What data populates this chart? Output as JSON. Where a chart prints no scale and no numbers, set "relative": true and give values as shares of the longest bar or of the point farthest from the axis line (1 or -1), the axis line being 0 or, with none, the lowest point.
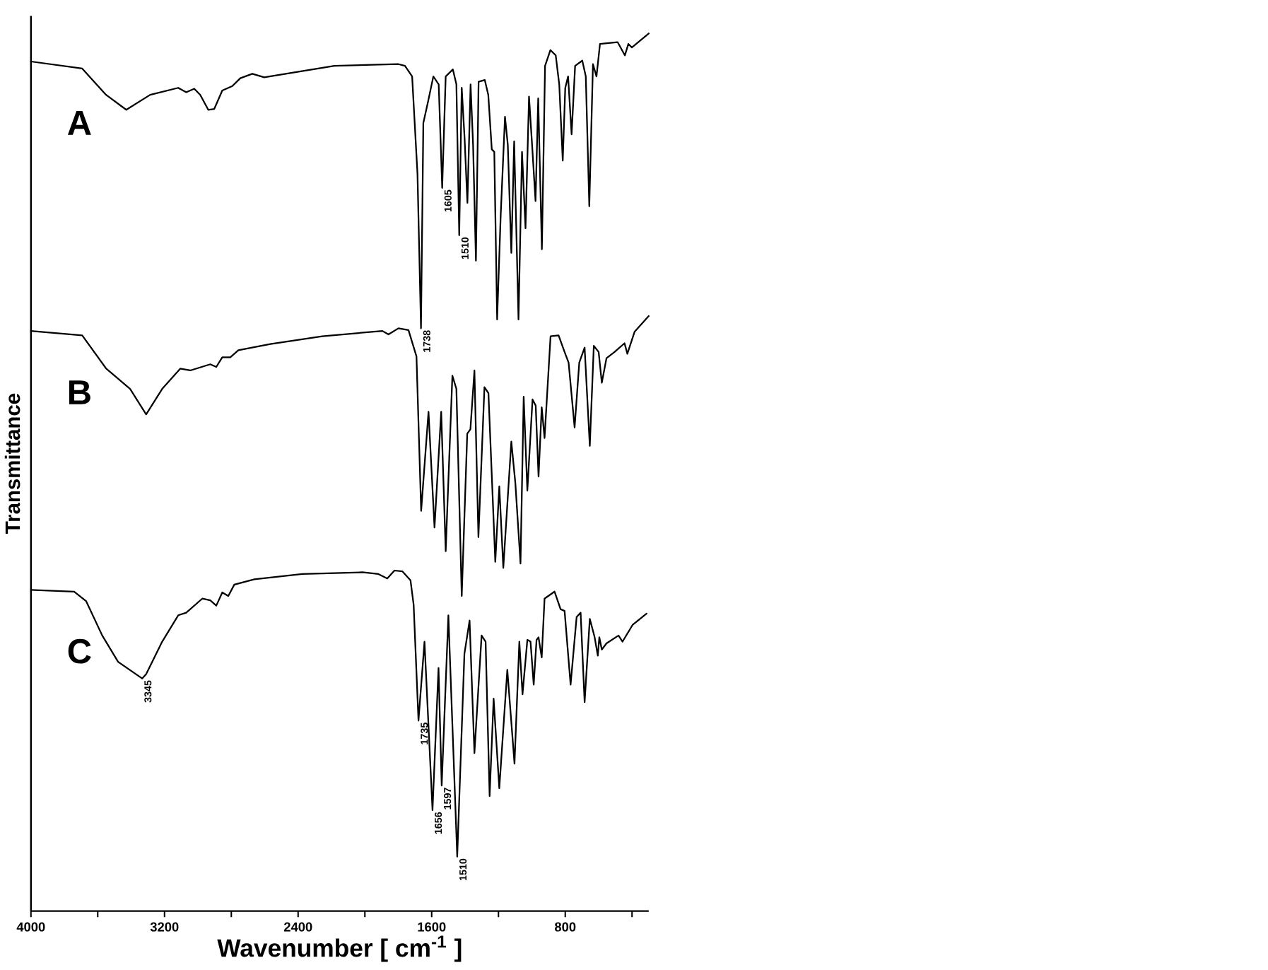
{
  "chart_data": {
    "type": "line",
    "xlabel": "Wavenumber [ cm$^{-1}$ ]",
    "ylabel": "Transmittance",
    "relative": true,
    "xlim": [
      4000,
      300
    ],
    "xticks": [
      4000,
      {
        "value": 3600,
        "label": null
      },
      3200,
      {
        "value": 2800,
        "label": null
      },
      2400,
      {
        "value": 2000,
        "label": null
      },
      1600,
      {
        "value": 1200,
        "label": null
      },
      800,
      {
        "value": 400,
        "label": null
      }
    ],
    "marker": "none",
    "line_style": "solid",
    "series": [
      {
        "name": "A",
        "color": "#000000",
        "x": [
          4000,
          3693,
          3550,
          3429,
          3286,
          3118,
          3070,
          3022,
          2986,
          2938,
          2902,
          2854,
          2794,
          2746,
          2674,
          2603,
          2183,
          1799,
          1760,
          1717,
          1685,
          1664,
          1650,
          1622,
          1590,
          1558,
          1537,
          1516,
          1473,
          1452,
          1435,
          1420,
          1403,
          1386,
          1367,
          1352,
          1335,
          1319,
          1282,
          1261,
          1240,
          1225,
          1208,
          1187,
          1161,
          1144,
          1123,
          1106,
          1080,
          1059,
          1038,
          1017,
          996,
          978,
          962,
          940,
          921,
          889,
          857,
          836,
          815,
          800,
          783,
          762,
          741,
          698,
          677,
          656,
          634,
          613,
          592,
          486,
          443,
          422,
          401,
          300
        ],
        "values": [
          0.968,
          0.96,
          0.93,
          0.913,
          0.93,
          0.938,
          0.933,
          0.937,
          0.93,
          0.913,
          0.914,
          0.935,
          0.94,
          0.949,
          0.954,
          0.95,
          0.963,
          0.965,
          0.963,
          0.951,
          0.84,
          0.664,
          0.898,
          0.922,
          0.951,
          0.942,
          0.824,
          0.951,
          0.959,
          0.942,
          0.77,
          0.938,
          0.881,
          0.807,
          0.942,
          0.873,
          0.741,
          0.945,
          0.947,
          0.93,
          0.868,
          0.865,
          0.674,
          0.791,
          0.905,
          0.873,
          0.75,
          0.877,
          0.674,
          0.865,
          0.778,
          0.928,
          0.865,
          0.809,
          0.926,
          0.754,
          0.963,
          0.981,
          0.975,
          0.942,
          0.855,
          0.938,
          0.951,
          0.885,
          0.963,
          0.969,
          0.951,
          0.803,
          0.965,
          0.951,
          0.988,
          0.99,
          0.975,
          0.988,
          0.984,
          1.0
        ]
      },
      {
        "name": "B",
        "color": "#000000",
        "x": [
          4000,
          3693,
          3549,
          3406,
          3310,
          3214,
          3106,
          3046,
          2926,
          2890,
          2854,
          2806,
          2758,
          2566,
          2255,
          1895,
          1859,
          1799,
          1739,
          1691,
          1663,
          1619,
          1583,
          1543,
          1516,
          1476,
          1452,
          1420,
          1387,
          1368,
          1344,
          1320,
          1284,
          1260,
          1219,
          1195,
          1171,
          1123,
          1099,
          1068,
          1049,
          1027,
          996,
          977,
          960,
          941,
          924,
          888,
          840,
          804,
          780,
          744,
          716,
          684,
          653,
          629,
          600,
          581,
          553,
          505,
          445,
          428,
          385,
          300
        ],
        "values": [
          0.661,
          0.656,
          0.618,
          0.595,
          0.566,
          0.595,
          0.618,
          0.616,
          0.623,
          0.62,
          0.631,
          0.631,
          0.639,
          0.646,
          0.655,
          0.661,
          0.657,
          0.664,
          0.662,
          0.632,
          0.456,
          0.569,
          0.437,
          0.569,
          0.41,
          0.61,
          0.595,
          0.359,
          0.544,
          0.549,
          0.616,
          0.426,
          0.597,
          0.59,
          0.398,
          0.484,
          0.391,
          0.535,
          0.488,
          0.396,
          0.586,
          0.479,
          0.583,
          0.576,
          0.495,
          0.574,
          0.539,
          0.655,
          0.656,
          0.637,
          0.625,
          0.551,
          0.625,
          0.642,
          0.53,
          0.644,
          0.637,
          0.602,
          0.63,
          0.637,
          0.647,
          0.635,
          0.66,
          0.678
        ]
      },
      {
        "name": "C",
        "color": "#000000",
        "x": [
          4000,
          3741,
          3669,
          3573,
          3478,
          3334,
          3310,
          3214,
          3118,
          3070,
          2974,
          2926,
          2890,
          2854,
          2818,
          2782,
          2662,
          2375,
          2015,
          1919,
          1866,
          1823,
          1775,
          1727,
          1708,
          1679,
          1643,
          1595,
          1559,
          1540,
          1500,
          1447,
          1404,
          1373,
          1344,
          1301,
          1277,
          1253,
          1229,
          1195,
          1147,
          1104,
          1075,
          1056,
          1027,
          1008,
          989,
          972,
          960,
          941,
          924,
          864,
          828,
          804,
          768,
          732,
          708,
          684,
          653,
          624,
          605,
          596,
          581,
          553,
          481,
          457,
          397,
          313
        ],
        "values": [
          0.366,
          0.364,
          0.353,
          0.314,
          0.284,
          0.265,
          0.27,
          0.307,
          0.337,
          0.34,
          0.356,
          0.354,
          0.348,
          0.363,
          0.359,
          0.372,
          0.378,
          0.384,
          0.386,
          0.384,
          0.379,
          0.388,
          0.387,
          0.377,
          0.349,
          0.217,
          0.307,
          0.115,
          0.277,
          0.143,
          0.337,
          0.062,
          0.293,
          0.331,
          0.18,
          0.314,
          0.307,
          0.131,
          0.242,
          0.14,
          0.275,
          0.168,
          0.307,
          0.247,
          0.309,
          0.307,
          0.258,
          0.309,
          0.312,
          0.289,
          0.356,
          0.364,
          0.344,
          0.342,
          0.258,
          0.335,
          0.34,
          0.238,
          0.333,
          0.312,
          0.291,
          0.312,
          0.298,
          0.305,
          0.314,
          0.307,
          0.326,
          0.339
        ]
      }
    ],
    "annotations": [
      {
        "text": "1738",
        "x": 1664,
        "y": 0.664
      },
      {
        "text": "1605",
        "x": 1537,
        "y": 0.824
      },
      {
        "text": "1510",
        "x": 1435,
        "y": 0.77
      },
      {
        "text": "3345",
        "x": 3334,
        "y": 0.265
      },
      {
        "text": "1735",
        "x": 1679,
        "y": 0.217
      },
      {
        "text": "1656",
        "x": 1595,
        "y": 0.115
      },
      {
        "text": "1597",
        "x": 1540,
        "y": 0.143
      },
      {
        "text": "1510",
        "x": 1447,
        "y": 0.062
      }
    ]
  }
}
